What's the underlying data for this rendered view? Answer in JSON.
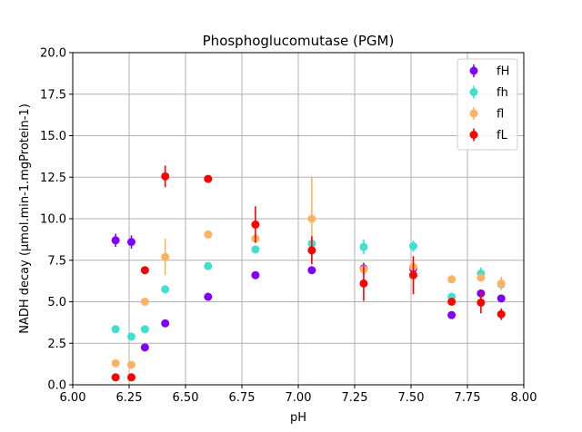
{
  "chart_data": {
    "type": "scatter",
    "title": "Phosphoglucomutase (PGM)",
    "xlabel": "pH",
    "ylabel": "NADH decay (µmol.min-1.mgProtein-1)",
    "xlim": [
      6.0,
      8.0
    ],
    "ylim": [
      0.0,
      20.0
    ],
    "xticks": [
      "6.00",
      "6.25",
      "6.50",
      "6.75",
      "7.00",
      "7.25",
      "7.50",
      "7.75",
      "8.00"
    ],
    "yticks": [
      "0.0",
      "2.5",
      "5.0",
      "7.5",
      "10.0",
      "12.5",
      "15.0",
      "17.5",
      "20.0"
    ],
    "grid": true,
    "legend_position": "top-right",
    "error_bars": true,
    "series": [
      {
        "name": "fH",
        "color": "#8000ff",
        "points": [
          {
            "x": 6.19,
            "y": 8.7,
            "err": 0.4
          },
          {
            "x": 6.26,
            "y": 8.6,
            "err": 0.4
          },
          {
            "x": 6.32,
            "y": 2.25,
            "err": 0.2
          },
          {
            "x": 6.41,
            "y": 3.7,
            "err": 0.15
          },
          {
            "x": 6.6,
            "y": 5.3,
            "err": 0.1
          },
          {
            "x": 6.81,
            "y": 6.6,
            "err": 0.1
          },
          {
            "x": 7.06,
            "y": 6.9,
            "err": 0.1
          },
          {
            "x": 7.29,
            "y": 7.0,
            "err": 0.35
          },
          {
            "x": 7.51,
            "y": 7.0,
            "err": 0.1
          },
          {
            "x": 7.68,
            "y": 4.2,
            "err": 0.1
          },
          {
            "x": 7.81,
            "y": 5.5,
            "err": 0.1
          },
          {
            "x": 7.9,
            "y": 5.2,
            "err": 0.1
          }
        ]
      },
      {
        "name": "fh",
        "color": "#40e0d0",
        "points": [
          {
            "x": 6.19,
            "y": 3.35,
            "err": 0.1
          },
          {
            "x": 6.26,
            "y": 2.9,
            "err": 0.1
          },
          {
            "x": 6.32,
            "y": 3.35,
            "err": 0.1
          },
          {
            "x": 6.41,
            "y": 5.75,
            "err": 0.1
          },
          {
            "x": 6.6,
            "y": 7.15,
            "err": 0.1
          },
          {
            "x": 6.81,
            "y": 8.15,
            "err": 0.1
          },
          {
            "x": 7.06,
            "y": 8.5,
            "err": 0.2
          },
          {
            "x": 7.29,
            "y": 8.3,
            "err": 0.45
          },
          {
            "x": 7.51,
            "y": 8.35,
            "err": 0.35
          },
          {
            "x": 7.68,
            "y": 5.3,
            "err": 0.1
          },
          {
            "x": 7.81,
            "y": 6.7,
            "err": 0.35
          },
          {
            "x": 7.9,
            "y": 6.05,
            "err": 0.3
          }
        ]
      },
      {
        "name": "fl",
        "color": "#ffb360",
        "points": [
          {
            "x": 6.19,
            "y": 1.3,
            "err": 0.1
          },
          {
            "x": 6.26,
            "y": 1.2,
            "err": 0.1
          },
          {
            "x": 6.32,
            "y": 5.0,
            "err": 0.1
          },
          {
            "x": 6.41,
            "y": 7.7,
            "err": 1.1
          },
          {
            "x": 6.6,
            "y": 9.05,
            "err": 0.1
          },
          {
            "x": 6.81,
            "y": 8.8,
            "err": 0.1
          },
          {
            "x": 7.06,
            "y": 10.0,
            "err": 2.55
          },
          {
            "x": 7.29,
            "y": 6.95,
            "err": 0.1
          },
          {
            "x": 7.51,
            "y": 7.1,
            "err": 0.1
          },
          {
            "x": 7.68,
            "y": 6.35,
            "err": 0.1
          },
          {
            "x": 7.81,
            "y": 6.45,
            "err": 0.1
          },
          {
            "x": 7.9,
            "y": 6.1,
            "err": 0.4
          }
        ]
      },
      {
        "name": "fL",
        "color": "#ff0000",
        "points": [
          {
            "x": 6.19,
            "y": 0.45,
            "err": 0.1
          },
          {
            "x": 6.26,
            "y": 0.45,
            "err": 0.1
          },
          {
            "x": 6.32,
            "y": 6.9,
            "err": 0.1
          },
          {
            "x": 6.41,
            "y": 12.55,
            "err": 0.65
          },
          {
            "x": 6.6,
            "y": 12.4,
            "err": 0.15
          },
          {
            "x": 6.81,
            "y": 9.65,
            "err": 1.1
          },
          {
            "x": 7.06,
            "y": 8.1,
            "err": 0.85
          },
          {
            "x": 7.29,
            "y": 6.1,
            "err": 1.05
          },
          {
            "x": 7.51,
            "y": 6.6,
            "err": 1.15
          },
          {
            "x": 7.68,
            "y": 5.0,
            "err": 0.2
          },
          {
            "x": 7.81,
            "y": 4.95,
            "err": 0.65
          },
          {
            "x": 7.9,
            "y": 4.25,
            "err": 0.35
          }
        ]
      }
    ]
  }
}
